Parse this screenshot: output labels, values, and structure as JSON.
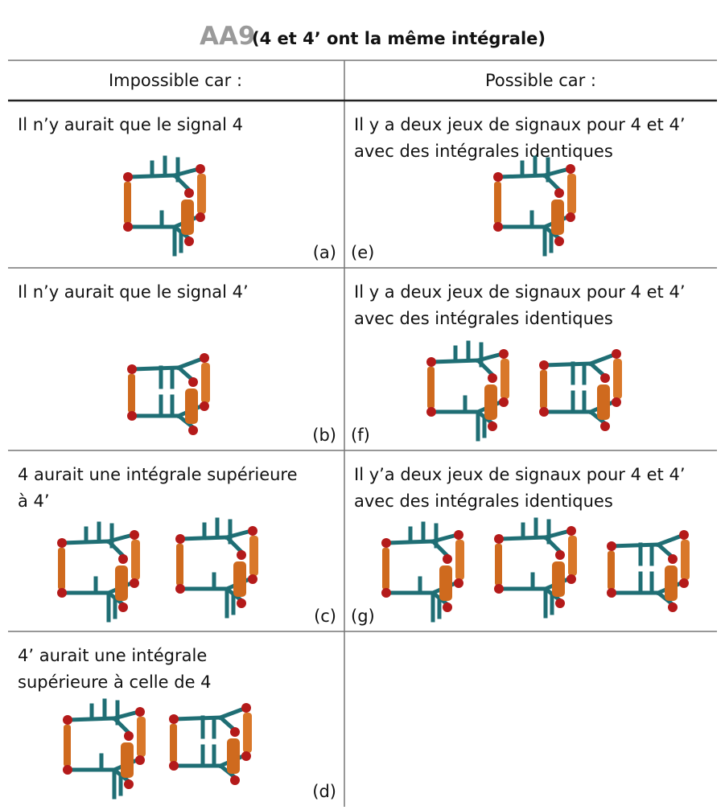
{
  "title": {
    "code": "AA9",
    "note": "(4 et 4’ ont la même intégrale)"
  },
  "table": {
    "header": [
      "Impossible car :",
      "Possible car :"
    ],
    "rows": [
      [
        {
          "lines": [
            "Il n’y aurait que le signal 4"
          ],
          "label": "(a)"
        },
        {
          "lines": [
            "Il y a deux jeux de signaux pour 4 et 4’",
            "avec des intégrales identiques"
          ],
          "label": "(e)"
        }
      ],
      [
        {
          "lines": [
            "Il n’y aurait que le signal 4’"
          ],
          "label": "(b)"
        },
        {
          "lines": [
            "Il y a deux jeux de signaux pour 4 et 4’",
            "avec des intégrales identiques"
          ],
          "label": "(f)"
        }
      ],
      [
        {
          "lines": [
            "4 aurait une intégrale supérieure",
            "à 4’"
          ],
          "label": "(c)"
        },
        {
          "lines": [
            "Il y’a deux jeux de signaux pour 4 et 4’",
            "avec des intégrales identiques"
          ],
          "label": "(g)"
        }
      ],
      [
        {
          "lines": [
            "4’ aurait une intégrale",
            "supérieure à celle de 4"
          ],
          "label": "(d)"
        }
      ]
    ]
  }
}
